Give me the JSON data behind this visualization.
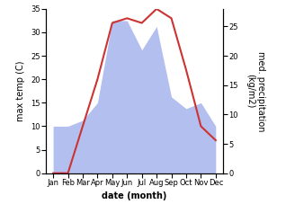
{
  "months": [
    "Jan",
    "Feb",
    "Mar",
    "Apr",
    "May",
    "Jun",
    "Jul",
    "Aug",
    "Sep",
    "Oct",
    "Nov",
    "Dec"
  ],
  "month_positions": [
    1,
    2,
    3,
    4,
    5,
    6,
    7,
    8,
    9,
    10,
    11,
    12
  ],
  "temperature": [
    0,
    0,
    10,
    20,
    32,
    33,
    32,
    35,
    33,
    22,
    10,
    7
  ],
  "precipitation": [
    8,
    8,
    9,
    12,
    26,
    26,
    21,
    25,
    13,
    11,
    12,
    8
  ],
  "temp_color": "#cc3333",
  "precip_color": "#b3bfee",
  "background_color": "#ffffff",
  "ylabel_left": "max temp (C)",
  "ylabel_right": "med. precipitation\n(kg/m2)",
  "xlabel": "date (month)",
  "ylim_left": [
    0,
    35
  ],
  "ylim_right": [
    0,
    28
  ],
  "yticks_left": [
    0,
    5,
    10,
    15,
    20,
    25,
    30,
    35
  ],
  "yticks_right": [
    0,
    5,
    10,
    15,
    20,
    25
  ],
  "label_fontsize": 7,
  "tick_fontsize": 6
}
